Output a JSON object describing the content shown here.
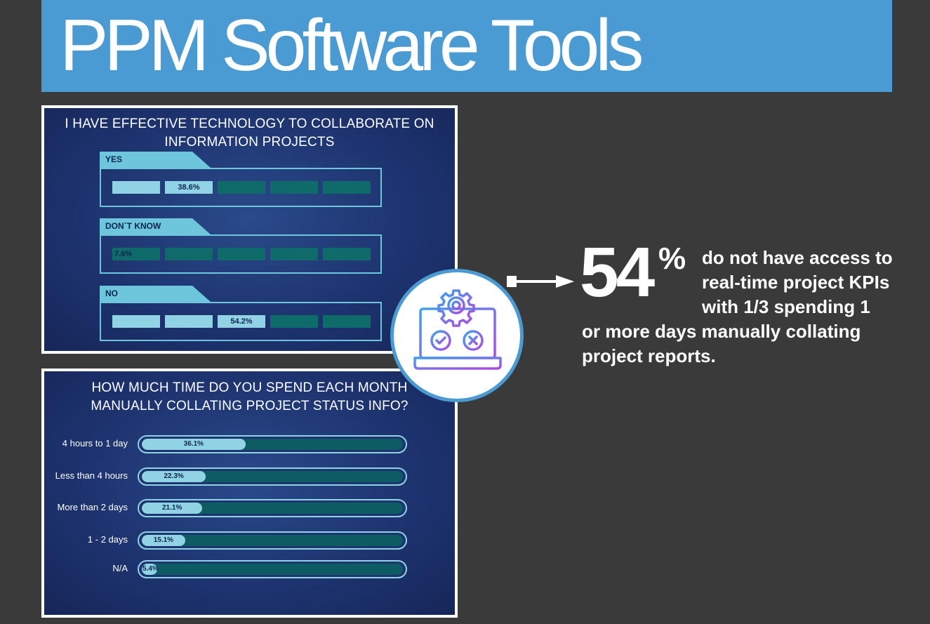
{
  "header": {
    "title": "PPM Software Tools"
  },
  "colors": {
    "banner": "#4a9ad4",
    "background": "#3a3a3a",
    "accent_light": "#8fd3e4",
    "accent_dark": "#0d5c64",
    "icon_gradient_start": "#3fa0f0",
    "icon_gradient_end": "#b048e8"
  },
  "callout": {
    "big_number": "54",
    "percent_sign": "%",
    "lines": [
      "do not have access to",
      "real-time project KPIs",
      "with 1/3 spending 1",
      "or more days manually collating",
      "project reports."
    ],
    "icon": "laptop-gear-check-cross-icon"
  },
  "chart_data": [
    {
      "type": "bar",
      "title": "I HAVE EFFECTIVE TECHNOLOGY TO COLLABORATE ON INFORMATION PROJECTS",
      "title_lines": [
        "I HAVE EFFECTIVE TECHNOLOGY TO COLLABORATE ON",
        "INFORMATION PROJECTS"
      ],
      "categories": [
        "YES",
        "DON´T KNOW",
        "NO"
      ],
      "values": [
        38.6,
        7.6,
        54.2
      ],
      "value_labels": [
        "38.6%",
        "7.6%",
        "54.2%"
      ],
      "unit": "%",
      "segments": 5,
      "ylim": [
        0,
        100
      ]
    },
    {
      "type": "bar",
      "orientation": "horizontal",
      "title": "HOW MUCH TIME DO YOU SPEND EACH MONTH MANUALLY COLLATING PROJECT STATUS INFO?",
      "title_lines": [
        "HOW MUCH TIME DO YOU SPEND EACH MONTH",
        "MANUALLY COLLATING PROJECT STATUS INFO?"
      ],
      "categories": [
        "4 hours to 1 day",
        "Less than 4 hours",
        "More than 2 days",
        "1 - 2 days",
        "N/A"
      ],
      "values": [
        36.1,
        22.3,
        21.1,
        15.1,
        5.4
      ],
      "value_labels": [
        "36.1%",
        "22.3%",
        "21.1%",
        "15.1%",
        "5.4%"
      ],
      "unit": "%",
      "xlim": [
        0,
        100
      ]
    }
  ]
}
